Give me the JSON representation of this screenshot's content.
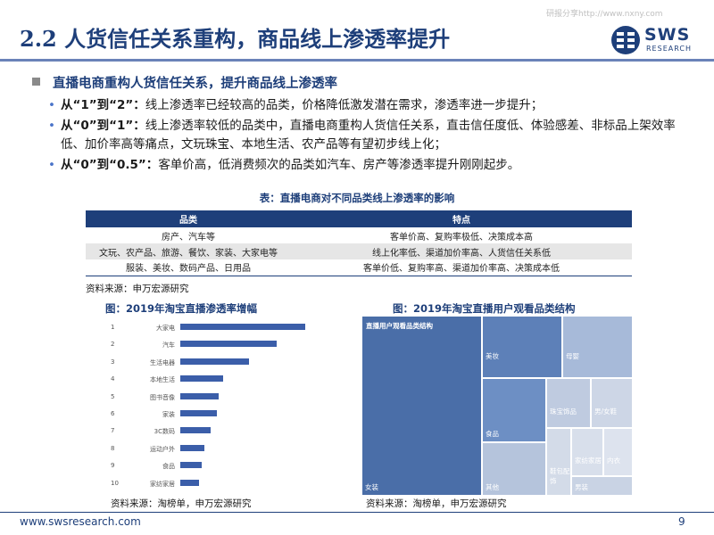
{
  "header": {
    "title": "2.2 人货信任关系重构，商品线上渗透率提升",
    "watermark": "研报分享http://www.nxny.com",
    "logo_text": "SWS",
    "logo_sub": "RESEARCH"
  },
  "section": {
    "heading": "直播电商重构人货信任关系，提升商品线上渗透率",
    "bullets": [
      {
        "lead": "从“1”到“2”：",
        "text": "线上渗透率已经较高的品类，价格降低激发潜在需求，渗透率进一步提升；"
      },
      {
        "lead": "从“0”到“1”：",
        "text": "线上渗透率较低的品类中，直播电商重构人货信任关系，直击信任度低、体验感差、非标品上架效率低、加价率高等痛点，文玩珠宝、本地生活、农产品等有望初步线上化；"
      },
      {
        "lead": "从“0”到“0.5”：",
        "text": "客单价高，低消费频次的品类如汽车、房产等渗透率提升刚刚起步。"
      }
    ]
  },
  "table": {
    "caption": "表：直播电商对不同品类线上渗透率的影响",
    "headers": [
      "品类",
      "特点"
    ],
    "rows": [
      [
        "房产、汽车等",
        "客单价高、复购率极低、决策成本高"
      ],
      [
        "文玩、农产品、旅游、餐饮、家装、大家电等",
        "线上化率低、渠道加价率高、人货信任关系低"
      ],
      [
        "服装、美妆、数码产品、日用品",
        "客单价低、复购率高、渠道加价率高、决策成本低"
      ]
    ],
    "source": "资料来源：申万宏源研究"
  },
  "chart_bar": {
    "title": "图：2019年淘宝直播渗透率增幅",
    "source": "资料来源：淘榜单，申万宏源研究"
  },
  "chart_treemap": {
    "title": "图：2019年淘宝直播用户观看品类结构",
    "source": "资料来源：淘榜单，申万宏源研究"
  },
  "chart_data": [
    {
      "type": "bar",
      "orientation": "horizontal",
      "title": "图：2019年淘宝直播渗透率增幅",
      "categories": [
        "大家电",
        "汽车",
        "生活电器",
        "本地生活",
        "图书音像",
        "家装",
        "3C数码",
        "运动户外",
        "食品",
        "家纺家居"
      ],
      "ranks": [
        "1",
        "2",
        "3",
        "4",
        "5",
        "6",
        "7",
        "8",
        "9",
        "10"
      ],
      "values": [
        100,
        77,
        55,
        34,
        31,
        29,
        24,
        19,
        17,
        15
      ],
      "value_scale": "relative (no axis printed)",
      "color": "#3b5ea9",
      "grid": false
    },
    {
      "type": "treemap",
      "title": "图：2019年淘宝直播用户观看品类结构",
      "label": "直播用户观看品类结构",
      "cells": [
        {
          "name": "女装",
          "share": 44,
          "color": "#4a6ea8"
        },
        {
          "name": "美妆",
          "share": 12,
          "color": "#5d80b8"
        },
        {
          "name": "食品",
          "share": 11,
          "color": "#6d8fc4"
        },
        {
          "name": "母婴",
          "share": 9,
          "color": "#a7bad9"
        },
        {
          "name": "其他",
          "share": 9,
          "color": "#b5c4dc"
        },
        {
          "name": "珠宝饰品",
          "share": 5,
          "color": "#bfcbe0"
        },
        {
          "name": "男/女鞋",
          "share": 4,
          "color": "#cdd6e6"
        },
        {
          "name": "鞋包配饰",
          "share": 2,
          "color": "#d3dbe8"
        },
        {
          "name": "家纺家居",
          "share": 2,
          "color": "#d8dfeb"
        },
        {
          "name": "内衣",
          "share": 1,
          "color": "#dde3ee"
        },
        {
          "name": "男装",
          "share": 1,
          "color": "#c9d3e4"
        }
      ]
    }
  ],
  "footer": {
    "url": "www.swsresearch.com",
    "page": "9"
  },
  "colors": {
    "brand": "#1e3f7a",
    "accent": "#4a74c9",
    "bar": "#3b5ea9"
  }
}
